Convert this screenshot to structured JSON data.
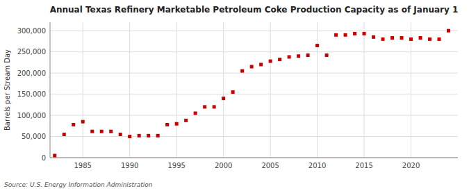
{
  "chart_data": {
    "type": "scatter",
    "title": "Annual Texas Refinery Marketable Petroleum Coke Production Capacity as of January 1",
    "ylabel": "Barrels per Stream Day",
    "source": "Source: U.S. Energy Information Administration",
    "color": "#cc0000",
    "marker": "square",
    "grid": true,
    "x": [
      1982,
      1983,
      1984,
      1985,
      1986,
      1987,
      1988,
      1989,
      1990,
      1991,
      1992,
      1993,
      1994,
      1995,
      1996,
      1997,
      1998,
      1999,
      2000,
      2001,
      2002,
      2003,
      2004,
      2005,
      2006,
      2007,
      2008,
      2009,
      2010,
      2011,
      2012,
      2013,
      2014,
      2015,
      2016,
      2017,
      2018,
      2019,
      2020,
      2021,
      2022,
      2023,
      2024
    ],
    "values": [
      5000,
      55000,
      78000,
      85000,
      62000,
      62000,
      62000,
      55000,
      50000,
      52000,
      52000,
      52000,
      78000,
      80000,
      88000,
      105000,
      120000,
      120000,
      140000,
      155000,
      205000,
      215000,
      220000,
      228000,
      232000,
      238000,
      240000,
      242000,
      265000,
      242000,
      290000,
      290000,
      293000,
      293000,
      285000,
      280000,
      283000,
      283000,
      280000,
      283000,
      280000,
      280000,
      300000
    ],
    "xlim": [
      1981.5,
      2025
    ],
    "xticks": [
      1985,
      1990,
      1995,
      2000,
      2005,
      2010,
      2015,
      2020
    ],
    "ylim": [
      0,
      320000
    ],
    "yticks": [
      0,
      {
        "value": 50000,
        "label": "50,000"
      },
      {
        "value": 100000,
        "label": "100,000"
      },
      {
        "value": 150000,
        "label": "150,000"
      },
      {
        "value": 200000,
        "label": "200,000"
      },
      {
        "value": 250000,
        "label": "250,000"
      },
      {
        "value": 300000,
        "label": "300,000"
      }
    ]
  }
}
